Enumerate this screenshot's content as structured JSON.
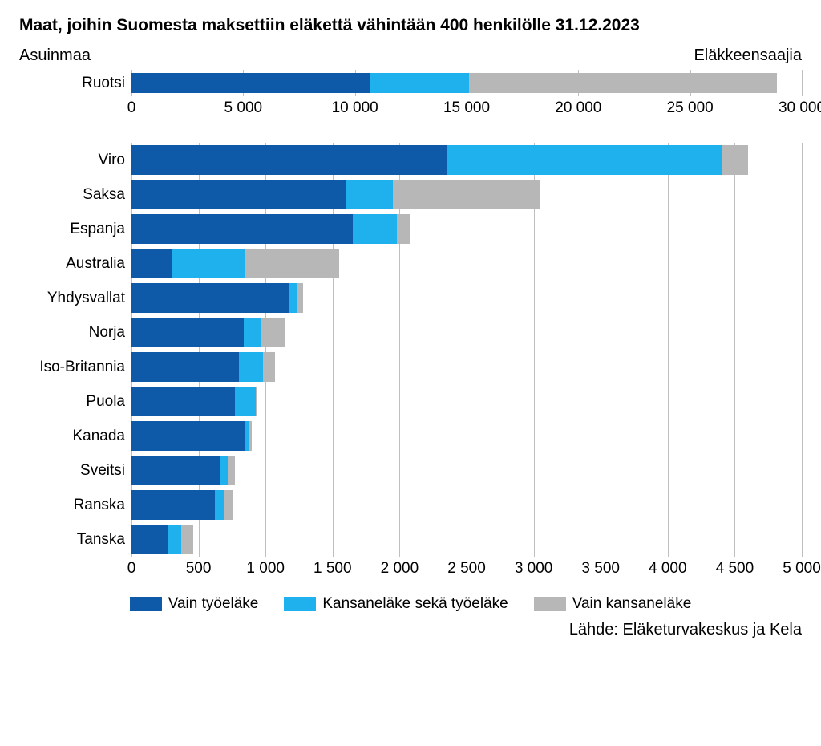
{
  "title": "Maat, joihin Suomesta maksettiin eläkettä vähintään 400 henkilölle 31.12.2023",
  "axis_left_label": "Asuinmaa",
  "axis_right_label": "Eläkkeensaajia",
  "source": "Lähde: Eläketurvakeskus ja Kela",
  "colors": {
    "seg1": "#0f5aa8",
    "seg2": "#1fb0ee",
    "seg3": "#b7b7b7",
    "grid": "#bfbfbf",
    "background": "#ffffff"
  },
  "legend": {
    "seg1": "Vain työeläke",
    "seg2": "Kansaneläke sekä työeläke",
    "seg3": "Vain kansaneläke"
  },
  "top_chart": {
    "xmax": 30000,
    "tick_step": 5000,
    "ticks": [
      "0",
      "5 000",
      "10 000",
      "15 000",
      "20 000",
      "25 000",
      "30 000"
    ],
    "rows": [
      {
        "label": "Ruotsi",
        "seg1": 10700,
        "seg2": 4400,
        "seg3": 13800
      }
    ]
  },
  "bottom_chart": {
    "xmax": 5000,
    "tick_step": 500,
    "ticks": [
      "0",
      "500",
      "1 000",
      "1 500",
      "2 000",
      "2 500",
      "3 000",
      "3 500",
      "4 000",
      "4 500",
      "5 000"
    ],
    "rows": [
      {
        "label": "Viro",
        "seg1": 2350,
        "seg2": 2050,
        "seg3": 200
      },
      {
        "label": "Saksa",
        "seg1": 1600,
        "seg2": 350,
        "seg3": 1100
      },
      {
        "label": "Espanja",
        "seg1": 1650,
        "seg2": 330,
        "seg3": 100
      },
      {
        "label": "Australia",
        "seg1": 300,
        "seg2": 550,
        "seg3": 700
      },
      {
        "label": "Yhdysvallat",
        "seg1": 1180,
        "seg2": 60,
        "seg3": 40
      },
      {
        "label": "Norja",
        "seg1": 840,
        "seg2": 130,
        "seg3": 170
      },
      {
        "label": "Iso-Britannia",
        "seg1": 800,
        "seg2": 180,
        "seg3": 90
      },
      {
        "label": "Puola",
        "seg1": 770,
        "seg2": 160,
        "seg3": 10
      },
      {
        "label": "Kanada",
        "seg1": 850,
        "seg2": 30,
        "seg3": 20
      },
      {
        "label": "Sveitsi",
        "seg1": 660,
        "seg2": 60,
        "seg3": 50
      },
      {
        "label": "Ranska",
        "seg1": 620,
        "seg2": 70,
        "seg3": 70
      },
      {
        "label": "Tanska",
        "seg1": 270,
        "seg2": 100,
        "seg3": 90
      }
    ]
  }
}
